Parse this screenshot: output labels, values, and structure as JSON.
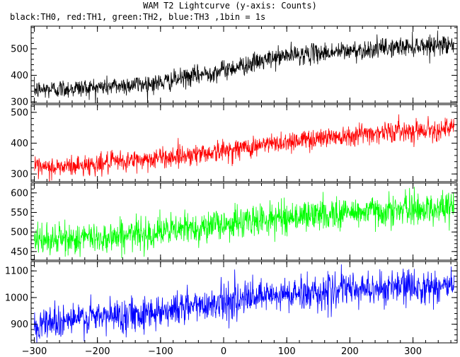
{
  "title": "WAM T2 Lightcurve (y-axis: Counts)",
  "subtitle": "black:TH0, red:TH1, green:TH2, blue:TH3 ,1bin = 1s",
  "chart_data": {
    "type": "line",
    "x_range": [
      -305,
      370
    ],
    "x_ticks": [
      -300,
      -200,
      -100,
      0,
      100,
      200,
      300
    ],
    "x_tick_labels": [
      "−300",
      "−200",
      "−100",
      "0",
      "100",
      "200",
      "300"
    ],
    "bin_seconds": 1,
    "panels": [
      {
        "name": "TH0",
        "color": "#000000",
        "ylim": [
          295,
          585
        ],
        "y_ticks": [
          300,
          400,
          500
        ],
        "y_tick_labels": [
          "300",
          "400",
          "500"
        ],
        "trend_x": [
          -300,
          -200,
          -100,
          0,
          100,
          200,
          300,
          365
        ],
        "trend_y": [
          345,
          355,
          372,
          420,
          475,
          492,
          510,
          520
        ],
        "noise_sigma": 18
      },
      {
        "name": "TH1",
        "color": "#ff0000",
        "ylim": [
          275,
          525
        ],
        "y_ticks": [
          300,
          400,
          500
        ],
        "y_tick_labels": [
          "300",
          "400",
          "500"
        ],
        "trend_x": [
          -300,
          -200,
          -100,
          0,
          100,
          200,
          300,
          365
        ],
        "trend_y": [
          315,
          332,
          352,
          375,
          405,
          428,
          442,
          448
        ],
        "noise_sigma": 17
      },
      {
        "name": "TH2",
        "color": "#00ff00",
        "ylim": [
          428,
          625
        ],
        "y_ticks": [
          450,
          500,
          550,
          600
        ],
        "y_tick_labels": [
          "450",
          "500",
          "550",
          "600"
        ],
        "trend_x": [
          -300,
          -200,
          -100,
          0,
          100,
          200,
          300,
          365
        ],
        "trend_y": [
          478,
          485,
          500,
          520,
          538,
          550,
          558,
          562
        ],
        "noise_sigma": 20
      },
      {
        "name": "TH3",
        "color": "#0000ff",
        "ylim": [
          830,
          1135
        ],
        "y_ticks": [
          900,
          1000,
          1100
        ],
        "y_tick_labels": [
          "900",
          "1000",
          "1100"
        ],
        "trend_x": [
          -300,
          -200,
          -100,
          0,
          100,
          200,
          300,
          365
        ],
        "trend_y": [
          905,
          925,
          950,
          985,
          1010,
          1030,
          1040,
          1045
        ],
        "noise_sigma": 32
      }
    ]
  }
}
